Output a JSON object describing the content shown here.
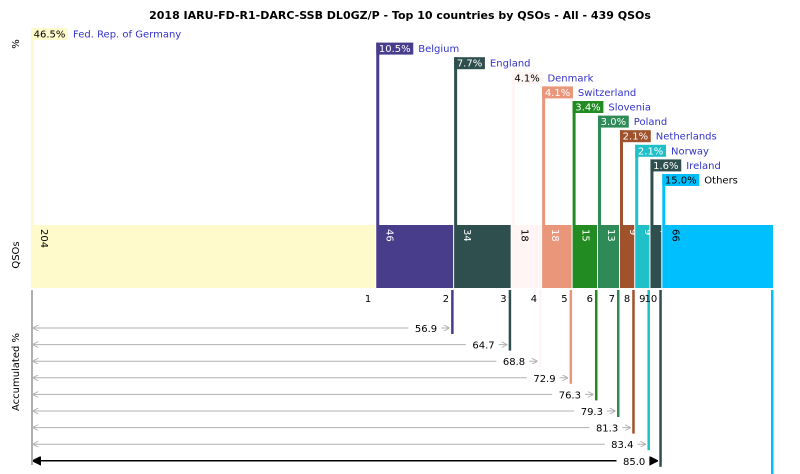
{
  "chart_data": {
    "type": "bar",
    "title": "2018 IARU-FD-R1-DARC-SSB DL0GZ/P - Top 10 countries by QSOs - All - 439 QSOs",
    "axis_labels": {
      "top": "%",
      "middle": "QSOs",
      "bottom": "Accumulated %"
    },
    "total": 439,
    "colors": {
      "link": "#3333cc",
      "arrow_gray": "#b0b0b0",
      "arrow_dark": "#000000"
    },
    "categories": [
      {
        "rank": "1",
        "name": "Fed. Rep. of Germany",
        "qsos": 204,
        "pct_label": "46.5%",
        "color": "#fffacc",
        "label_dark": true,
        "accumulated": ""
      },
      {
        "rank": "2",
        "name": "Belgium",
        "qsos": 46,
        "pct_label": "10.5%",
        "color": "#483d8b",
        "label_dark": false,
        "accumulated": "56.9"
      },
      {
        "rank": "3",
        "name": "England",
        "qsos": 34,
        "pct_label": "7.7%",
        "color": "#2f4f4f",
        "label_dark": false,
        "accumulated": "64.7"
      },
      {
        "rank": "4",
        "name": "Denmark",
        "qsos": 18,
        "pct_label": "4.1%",
        "color": "#fff5f5",
        "label_dark": true,
        "accumulated": "68.8"
      },
      {
        "rank": "5",
        "name": "Switzerland",
        "qsos": 18,
        "pct_label": "4.1%",
        "color": "#e9967a",
        "label_dark": false,
        "accumulated": "72.9"
      },
      {
        "rank": "6",
        "name": "Slovenia",
        "qsos": 15,
        "pct_label": "3.4%",
        "color": "#228b22",
        "label_dark": false,
        "accumulated": "76.3"
      },
      {
        "rank": "7",
        "name": "Poland",
        "qsos": 13,
        "pct_label": "3.0%",
        "color": "#2e8b57",
        "label_dark": false,
        "accumulated": "79.3"
      },
      {
        "rank": "8",
        "name": "Netherlands",
        "qsos": 9,
        "pct_label": "2.1%",
        "color": "#a0522d",
        "label_dark": false,
        "accumulated": "81.3"
      },
      {
        "rank": "9",
        "name": "Norway",
        "qsos": 9,
        "pct_label": "2.1%",
        "color": "#20c0c8",
        "label_dark": false,
        "accumulated": "83.4"
      },
      {
        "rank": "10",
        "name": "Ireland",
        "qsos": 7,
        "pct_label": "1.6%",
        "color": "#2f4f4f",
        "label_dark": false,
        "accumulated": "85.0"
      },
      {
        "rank": "",
        "name": "Others",
        "qsos": 66,
        "pct_label": "15.0%",
        "color": "#00bfff",
        "label_dark": true,
        "accumulated": "100.0"
      }
    ]
  }
}
